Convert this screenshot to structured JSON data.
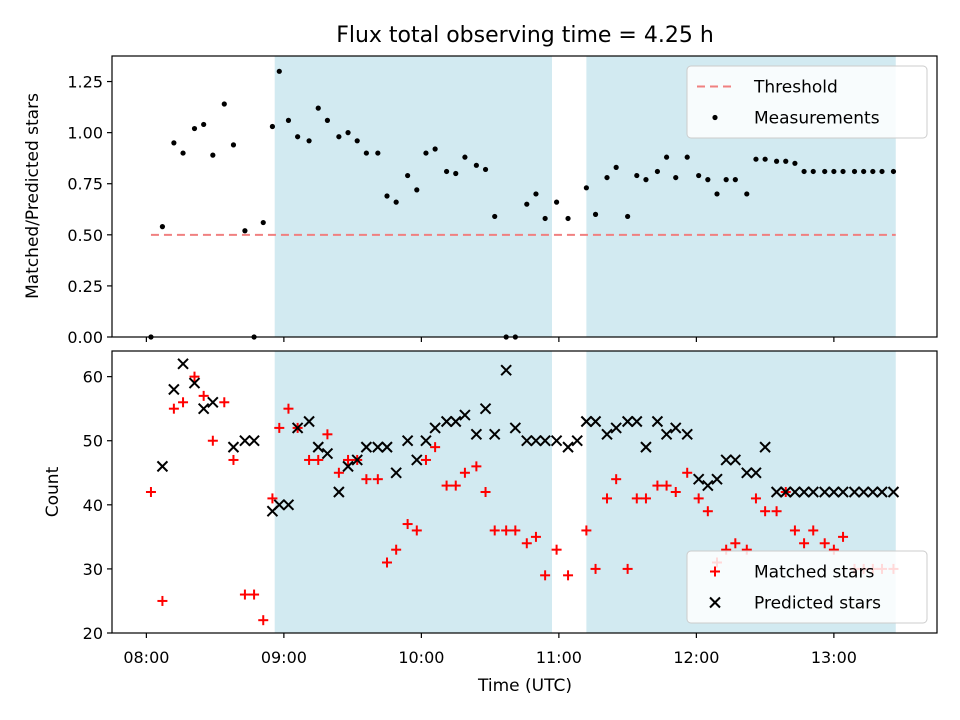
{
  "chart_data": [
    {
      "type": "scatter",
      "title": "Flux total observing time = 4.25 h",
      "xlabel": "",
      "ylabel": "Matched/Predicted stars",
      "xlim": [
        "07:45",
        "13:45"
      ],
      "ylim": [
        0,
        1.375
      ],
      "yticks": [
        0.0,
        0.25,
        0.5,
        0.75,
        1.0,
        1.25
      ],
      "ytick_labels": [
        "0.00",
        "0.25",
        "0.50",
        "0.75",
        "1.00",
        "1.25"
      ],
      "xticks": [
        "08:00",
        "09:00",
        "10:00",
        "11:00",
        "12:00",
        "13:00"
      ],
      "grid": false,
      "legend_position": "upper right",
      "shaded_intervals": [
        [
          "08:56",
          "10:57"
        ],
        [
          "11:12",
          "13:27"
        ]
      ],
      "shade_color": "#add8e6",
      "series": [
        {
          "name": "Threshold",
          "kind": "line",
          "style": "dashed",
          "color": "#f08080",
          "x": [
            "08:02",
            "13:27"
          ],
          "y": [
            0.5,
            0.5
          ]
        },
        {
          "name": "Measurements",
          "kind": "scatter",
          "marker": "dot",
          "color": "#000000",
          "x": [
            "08:02",
            "08:07",
            "08:12",
            "08:16",
            "08:21",
            "08:25",
            "08:29",
            "08:34",
            "08:38",
            "08:43",
            "08:47",
            "08:51",
            "08:55",
            "08:58",
            "09:02",
            "09:06",
            "09:11",
            "09:15",
            "09:19",
            "09:24",
            "09:28",
            "09:32",
            "09:36",
            "09:41",
            "09:45",
            "09:49",
            "09:54",
            "09:58",
            "10:02",
            "10:06",
            "10:11",
            "10:15",
            "10:19",
            "10:24",
            "10:28",
            "10:32",
            "10:37",
            "10:41",
            "10:46",
            "10:50",
            "10:54",
            "10:59",
            "11:04",
            "11:12",
            "11:16",
            "11:21",
            "11:25",
            "11:30",
            "11:34",
            "11:38",
            "11:43",
            "11:47",
            "11:51",
            "11:56",
            "12:01",
            "12:05",
            "12:09",
            "12:13",
            "12:17",
            "12:22",
            "12:26",
            "12:30",
            "12:35",
            "12:39",
            "12:43",
            "12:47",
            "12:51",
            "12:56",
            "13:00",
            "13:04",
            "13:09",
            "13:13",
            "13:17",
            "13:21",
            "13:26"
          ],
          "y": [
            0.0,
            0.54,
            0.95,
            0.9,
            1.02,
            1.04,
            0.89,
            1.14,
            0.94,
            0.52,
            0.0,
            0.56,
            1.03,
            1.3,
            1.06,
            0.98,
            0.96,
            1.12,
            1.06,
            0.98,
            1.0,
            0.96,
            0.9,
            0.9,
            0.69,
            0.66,
            0.79,
            0.72,
            0.9,
            0.92,
            0.81,
            0.8,
            0.88,
            0.84,
            0.82,
            0.59,
            0.0,
            0.0,
            0.65,
            0.7,
            0.58,
            0.66,
            0.58,
            0.73,
            0.6,
            0.78,
            0.83,
            0.59,
            0.79,
            0.77,
            0.81,
            0.88,
            0.78,
            0.88,
            0.79,
            0.77,
            0.7,
            0.77,
            0.77,
            0.7,
            0.87,
            0.87,
            0.86,
            0.86,
            0.85,
            0.81,
            0.81,
            0.81,
            0.81,
            0.81,
            0.81,
            0.81,
            0.81,
            0.81,
            0.81
          ]
        }
      ]
    },
    {
      "type": "scatter",
      "title": "",
      "xlabel": "Time (UTC)",
      "ylabel": "Count",
      "xlim": [
        "07:45",
        "13:45"
      ],
      "ylim": [
        20,
        64
      ],
      "yticks": [
        20,
        30,
        40,
        50,
        60
      ],
      "xticks": [
        "08:00",
        "09:00",
        "10:00",
        "11:00",
        "12:00",
        "13:00"
      ],
      "grid": false,
      "legend_position": "lower right",
      "shaded_intervals": [
        [
          "08:56",
          "10:57"
        ],
        [
          "11:12",
          "13:27"
        ]
      ],
      "shade_color": "#add8e6",
      "series": [
        {
          "name": "Matched stars",
          "marker": "plus",
          "color": "#ff0000",
          "x": [
            "08:02",
            "08:07",
            "08:12",
            "08:16",
            "08:21",
            "08:25",
            "08:29",
            "08:34",
            "08:38",
            "08:43",
            "08:47",
            "08:51",
            "08:55",
            "08:58",
            "09:02",
            "09:06",
            "09:11",
            "09:15",
            "09:19",
            "09:24",
            "09:28",
            "09:32",
            "09:36",
            "09:41",
            "09:45",
            "09:49",
            "09:54",
            "09:58",
            "10:02",
            "10:06",
            "10:11",
            "10:15",
            "10:19",
            "10:24",
            "10:28",
            "10:32",
            "10:37",
            "10:41",
            "10:46",
            "10:50",
            "10:54",
            "10:59",
            "11:04",
            "11:12",
            "11:16",
            "11:21",
            "11:25",
            "11:30",
            "11:34",
            "11:38",
            "11:43",
            "11:47",
            "11:51",
            "11:56",
            "12:01",
            "12:05",
            "12:09",
            "12:13",
            "12:17",
            "12:22",
            "12:26",
            "12:30",
            "12:35",
            "12:39",
            "12:43",
            "12:47",
            "12:51",
            "12:56",
            "13:00",
            "13:04",
            "13:09",
            "13:13",
            "13:17",
            "13:21",
            "13:26"
          ],
          "y": [
            42,
            25,
            55,
            56,
            60,
            57,
            50,
            56,
            47,
            26,
            26,
            22,
            41,
            52,
            55,
            52,
            47,
            47,
            51,
            45,
            47,
            47,
            44,
            44,
            31,
            33,
            37,
            36,
            47,
            49,
            43,
            43,
            45,
            46,
            42,
            36,
            36,
            36,
            34,
            35,
            29,
            33,
            29,
            36,
            30,
            41,
            44,
            30,
            41,
            41,
            43,
            43,
            42,
            45,
            41,
            39,
            31,
            33,
            34,
            33,
            41,
            39,
            39,
            42,
            36,
            34,
            36,
            34,
            33,
            35,
            30,
            30,
            30,
            30,
            30
          ]
        },
        {
          "name": "Predicted stars",
          "marker": "x",
          "color": "#000000",
          "x": [
            "08:07",
            "08:12",
            "08:16",
            "08:21",
            "08:25",
            "08:29",
            "08:38",
            "08:43",
            "08:47",
            "08:55",
            "08:58",
            "09:02",
            "09:06",
            "09:11",
            "09:15",
            "09:19",
            "09:24",
            "09:28",
            "09:32",
            "09:36",
            "09:41",
            "09:45",
            "09:49",
            "09:54",
            "09:58",
            "10:02",
            "10:06",
            "10:11",
            "10:15",
            "10:19",
            "10:24",
            "10:28",
            "10:32",
            "10:37",
            "10:41",
            "10:46",
            "10:50",
            "10:54",
            "10:59",
            "11:04",
            "11:08",
            "11:12",
            "11:16",
            "11:21",
            "11:25",
            "11:30",
            "11:34",
            "11:38",
            "11:43",
            "11:47",
            "11:51",
            "11:56",
            "12:01",
            "12:05",
            "12:09",
            "12:13",
            "12:17",
            "12:22",
            "12:26",
            "12:30",
            "12:35",
            "12:39",
            "12:43",
            "12:47",
            "12:51",
            "12:56",
            "13:00",
            "13:04",
            "13:09",
            "13:13",
            "13:17",
            "13:21",
            "13:26"
          ],
          "y": [
            46,
            58,
            62,
            59,
            55,
            56,
            49,
            50,
            50,
            39,
            40,
            40,
            52,
            53,
            49,
            48,
            42,
            46,
            47,
            49,
            49,
            49,
            45,
            50,
            47,
            50,
            52,
            53,
            53,
            54,
            51,
            55,
            51,
            61,
            52,
            50,
            50,
            50,
            50,
            49,
            50,
            53,
            53,
            51,
            52,
            53,
            53,
            49,
            53,
            51,
            52,
            51,
            44,
            43,
            44,
            47,
            47,
            45,
            45,
            49,
            42,
            42,
            42,
            42,
            42,
            42,
            42,
            42,
            42,
            42,
            42,
            42,
            42
          ]
        }
      ]
    }
  ]
}
